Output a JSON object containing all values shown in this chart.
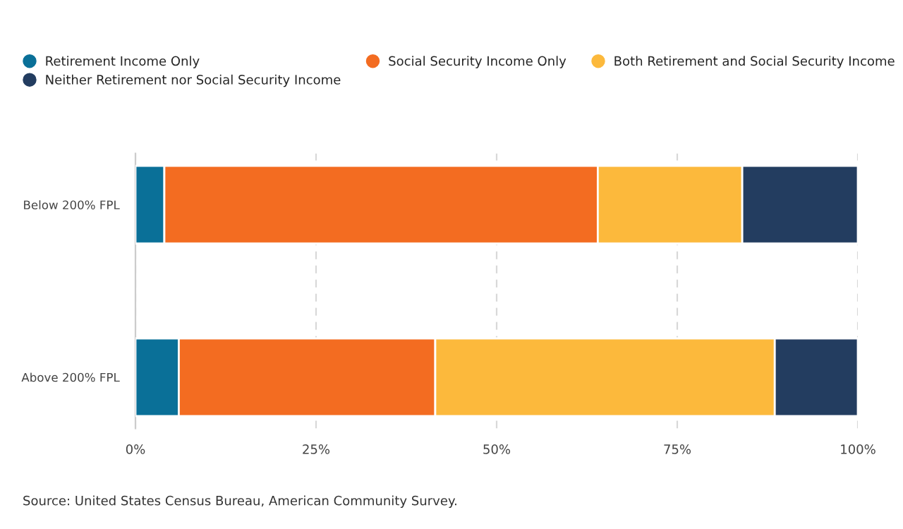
{
  "chart_data": {
    "type": "bar",
    "orientation": "horizontal",
    "stacked": true,
    "categories": [
      "Below 200% FPL",
      "Above 200% FPL"
    ],
    "series": [
      {
        "name": "Retirement Income Only",
        "color": "#0a7098",
        "values": [
          4,
          6
        ]
      },
      {
        "name": "Social Security Income Only",
        "color": "#f36c21",
        "values": [
          60,
          35.5
        ]
      },
      {
        "name": "Both Retirement and Social Security Income",
        "color": "#fcb93c",
        "values": [
          20,
          47
        ]
      },
      {
        "name": "Neither Retirement nor Social Security Income",
        "color": "#233d60",
        "values": [
          16,
          11.5
        ]
      }
    ],
    "xlim": [
      0,
      100
    ],
    "xticks": [
      {
        "value": 0,
        "label": "0%"
      },
      {
        "value": 25,
        "label": "25%"
      },
      {
        "value": 50,
        "label": "50%"
      },
      {
        "value": 75,
        "label": "75%"
      },
      {
        "value": 100,
        "label": "100%"
      }
    ],
    "grid": "x",
    "legend": "top left",
    "annotations": [
      "Source: United States Census Bureau, American Community Survey."
    ]
  }
}
